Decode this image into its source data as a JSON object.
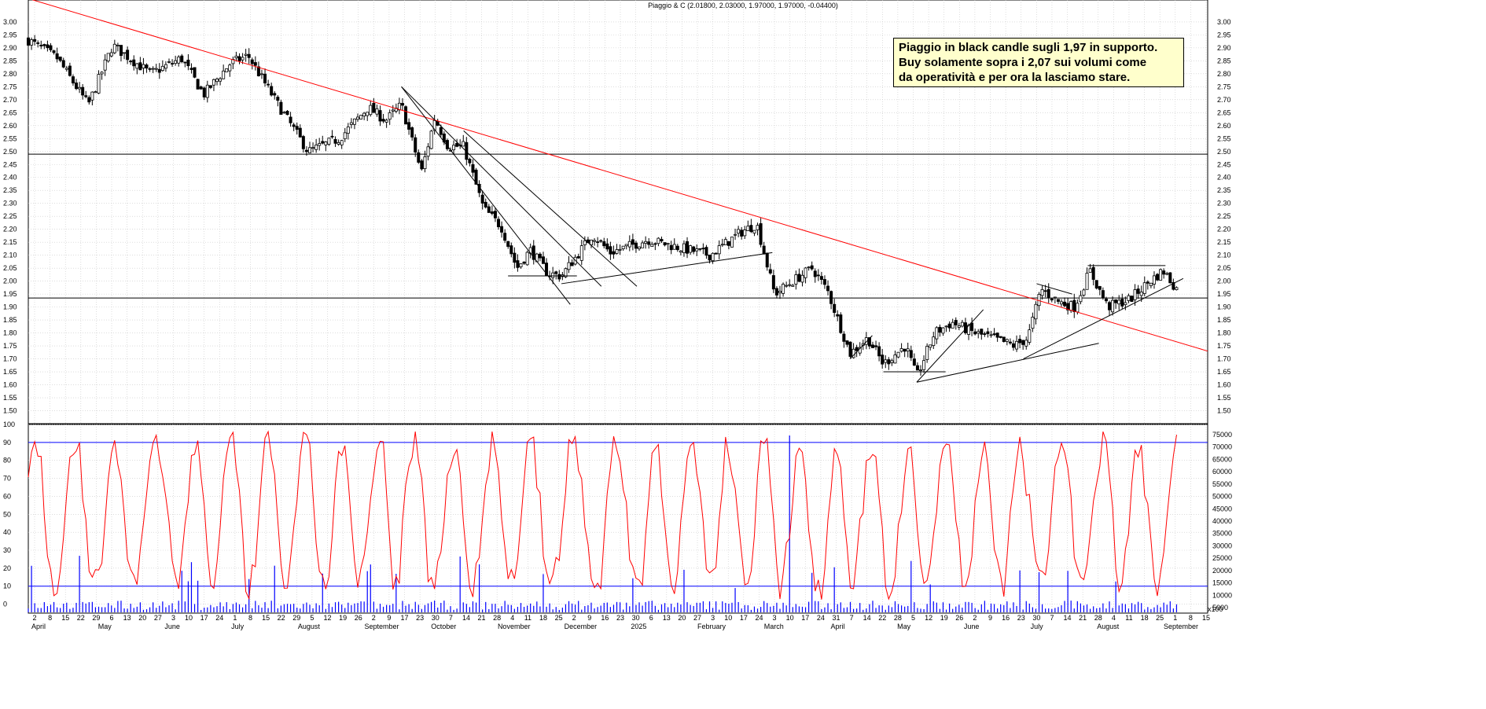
{
  "chart_data": {
    "type": "candlestick",
    "title": "Piaggio & C (2.01800, 2.03000, 1.97000, 1.97000, -0.04400)",
    "annotation": "Piaggio in black candle sugli 1,97 in supporto.\nBuy solamente sopra i 2,07 sui volumi come\nda operatività e per ora la lasciamo stare.",
    "price_axis": {
      "ylim": [
        1.45,
        3.03
      ],
      "ticks": [
        "3.00",
        "2.95",
        "2.90",
        "2.85",
        "2.80",
        "2.75",
        "2.70",
        "2.65",
        "2.60",
        "2.55",
        "2.50",
        "2.45",
        "2.40",
        "2.35",
        "2.30",
        "2.25",
        "2.20",
        "2.15",
        "2.10",
        "2.05",
        "2.00",
        "1.95",
        "1.90",
        "1.85",
        "1.80",
        "1.75",
        "1.70",
        "1.65",
        "1.60",
        "1.55",
        "1.50"
      ]
    },
    "oscillator_axis": {
      "ylim": [
        -5,
        100
      ],
      "ticks": [
        "100",
        "90",
        "80",
        "70",
        "60",
        "50",
        "40",
        "30",
        "20",
        "10",
        "0"
      ],
      "levels": [
        90,
        10
      ]
    },
    "volume_axis": {
      "ticks": [
        "75000",
        "70000",
        "65000",
        "60000",
        "55000",
        "50000",
        "45000",
        "40000",
        "35000",
        "30000",
        "25000",
        "20000",
        "15000",
        "10000",
        "5000"
      ],
      "unit_label": "x100"
    },
    "horizontal_levels": [
      2.49,
      1.935
    ],
    "month_labels": [
      "April",
      "May",
      "June",
      "July",
      "August",
      "September",
      "October",
      "November",
      "December",
      "2025",
      "February",
      "March",
      "April",
      "May",
      "June",
      "July",
      "August",
      "September"
    ],
    "day_labels": [
      "2",
      "8",
      "15",
      "22",
      "29",
      "6",
      "13",
      "20",
      "27",
      "3",
      "10",
      "17",
      "24",
      "1",
      "8",
      "15",
      "22",
      "29",
      "5",
      "12",
      "19",
      "26",
      "2",
      "9",
      "17",
      "23",
      "30",
      "7",
      "14",
      "21",
      "28",
      "4",
      "11",
      "18",
      "25",
      "2",
      "9",
      "16",
      "23",
      "30",
      "6",
      "13",
      "20",
      "27",
      "3",
      "10",
      "17",
      "24",
      "3",
      "10",
      "17",
      "24",
      "31",
      "7",
      "14",
      "22",
      "28",
      "5",
      "12",
      "19",
      "26",
      "2",
      "9",
      "16",
      "23",
      "30",
      "7",
      "14",
      "21",
      "28",
      "4",
      "11",
      "18",
      "25",
      "1",
      "8",
      "15"
    ],
    "trendlines": [
      {
        "color": "#ff0000",
        "from": {
          "date": "2024-04-02",
          "price": 3.09
        },
        "to": {
          "date": "2025-09-15",
          "price": 1.73
        }
      },
      {
        "color": "#000000",
        "from": {
          "date": "2024-09-17",
          "price": 2.75
        },
        "to": {
          "date": "2024-12-16",
          "price": 1.98
        }
      },
      {
        "color": "#000000",
        "from": {
          "date": "2024-09-17",
          "price": 2.75
        },
        "to": {
          "date": "2024-12-02",
          "price": 1.91
        }
      },
      {
        "color": "#000000",
        "from": {
          "date": "2024-10-15",
          "price": 2.58
        },
        "to": {
          "date": "2025-01-01",
          "price": 1.98
        }
      },
      {
        "color": "#000000",
        "from": {
          "date": "2024-11-28",
          "price": 1.99
        },
        "to": {
          "date": "2025-03-03",
          "price": 2.11
        }
      },
      {
        "color": "#000000",
        "from": {
          "date": "2024-11-04",
          "price": 2.02
        },
        "to": {
          "date": "2024-12-05",
          "price": 2.02
        }
      },
      {
        "color": "#000000",
        "from": {
          "date": "2025-04-07",
          "price": 1.7
        },
        "to": {
          "date": "2025-04-17",
          "price": 1.79
        }
      },
      {
        "color": "#000000",
        "from": {
          "date": "2025-04-22",
          "price": 1.65
        },
        "to": {
          "date": "2025-05-20",
          "price": 1.65
        }
      },
      {
        "color": "#000000",
        "from": {
          "date": "2025-05-07",
          "price": 1.61
        },
        "to": {
          "date": "2025-06-06",
          "price": 1.89
        }
      },
      {
        "color": "#000000",
        "from": {
          "date": "2025-05-07",
          "price": 1.61
        },
        "to": {
          "date": "2025-07-28",
          "price": 1.76
        }
      },
      {
        "color": "#000000",
        "from": {
          "date": "2025-06-24",
          "price": 1.7
        },
        "to": {
          "date": "2025-09-04",
          "price": 2.01
        }
      },
      {
        "color": "#000000",
        "from": {
          "date": "2025-06-30",
          "price": 1.99
        },
        "to": {
          "date": "2025-07-16",
          "price": 1.95
        }
      },
      {
        "color": "#000000",
        "from": {
          "date": "2025-07-23",
          "price": 2.06
        },
        "to": {
          "date": "2025-08-27",
          "price": 2.06
        }
      }
    ],
    "close_path": [
      {
        "date": "2024-04-02",
        "close": 2.93
      },
      {
        "date": "2024-04-15",
        "close": 2.86
      },
      {
        "date": "2024-04-29",
        "close": 2.68
      },
      {
        "date": "2024-05-10",
        "close": 2.91
      },
      {
        "date": "2024-05-27",
        "close": 2.8
      },
      {
        "date": "2024-06-10",
        "close": 2.86
      },
      {
        "date": "2024-06-20",
        "close": 2.72
      },
      {
        "date": "2024-07-02",
        "close": 2.84
      },
      {
        "date": "2024-07-10",
        "close": 2.87
      },
      {
        "date": "2024-07-22",
        "close": 2.7
      },
      {
        "date": "2024-07-31",
        "close": 2.58
      },
      {
        "date": "2024-08-06",
        "close": 2.5
      },
      {
        "date": "2024-08-20",
        "close": 2.55
      },
      {
        "date": "2024-09-02",
        "close": 2.67
      },
      {
        "date": "2024-09-10",
        "close": 2.62
      },
      {
        "date": "2024-09-17",
        "close": 2.68
      },
      {
        "date": "2024-09-26",
        "close": 2.42
      },
      {
        "date": "2024-10-02",
        "close": 2.63
      },
      {
        "date": "2024-10-08",
        "close": 2.52
      },
      {
        "date": "2024-10-15",
        "close": 2.52
      },
      {
        "date": "2024-10-24",
        "close": 2.28
      },
      {
        "date": "2024-11-01",
        "close": 2.21
      },
      {
        "date": "2024-11-08",
        "close": 2.05
      },
      {
        "date": "2024-11-14",
        "close": 2.12
      },
      {
        "date": "2024-11-22",
        "close": 2.03
      },
      {
        "date": "2024-11-28",
        "close": 2.02
      },
      {
        "date": "2024-12-06",
        "close": 2.11
      },
      {
        "date": "2024-12-12",
        "close": 2.18
      },
      {
        "date": "2024-12-20",
        "close": 2.11
      },
      {
        "date": "2025-01-06",
        "close": 2.16
      },
      {
        "date": "2025-01-20",
        "close": 2.13
      },
      {
        "date": "2025-02-03",
        "close": 2.1
      },
      {
        "date": "2025-02-17",
        "close": 2.19
      },
      {
        "date": "2025-02-24",
        "close": 2.22
      },
      {
        "date": "2025-03-04",
        "close": 1.95
      },
      {
        "date": "2025-03-14",
        "close": 2.01
      },
      {
        "date": "2025-03-21",
        "close": 2.05
      },
      {
        "date": "2025-03-28",
        "close": 1.96
      },
      {
        "date": "2025-04-07",
        "close": 1.72
      },
      {
        "date": "2025-04-15",
        "close": 1.78
      },
      {
        "date": "2025-04-22",
        "close": 1.68
      },
      {
        "date": "2025-05-02",
        "close": 1.75
      },
      {
        "date": "2025-05-07",
        "close": 1.63
      },
      {
        "date": "2025-05-15",
        "close": 1.8
      },
      {
        "date": "2025-05-23",
        "close": 1.84
      },
      {
        "date": "2025-06-02",
        "close": 1.8
      },
      {
        "date": "2025-06-10",
        "close": 1.78
      },
      {
        "date": "2025-06-20",
        "close": 1.75
      },
      {
        "date": "2025-06-26",
        "close": 1.78
      },
      {
        "date": "2025-07-02",
        "close": 1.97
      },
      {
        "date": "2025-07-10",
        "close": 1.92
      },
      {
        "date": "2025-07-17",
        "close": 1.9
      },
      {
        "date": "2025-07-24",
        "close": 2.04
      },
      {
        "date": "2025-08-01",
        "close": 1.9
      },
      {
        "date": "2025-08-11",
        "close": 1.93
      },
      {
        "date": "2025-08-20",
        "close": 2.0
      },
      {
        "date": "2025-08-26",
        "close": 2.04
      },
      {
        "date": "2025-09-01",
        "close": 1.97
      }
    ]
  }
}
